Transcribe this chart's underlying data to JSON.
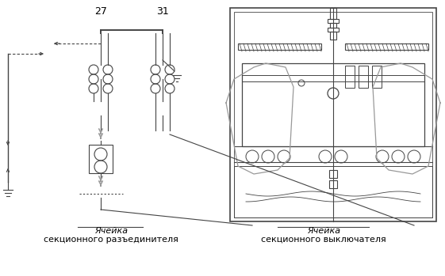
{
  "label_27": "27",
  "label_31": "31",
  "label_cell1_line1": "Ячейка",
  "label_cell1_line2": "секционного разъединителя",
  "label_cell2_line1": "Ячейка",
  "label_cell2_line2": "секционного выключателя",
  "line_color": "#444444",
  "bg_color": "#ffffff",
  "font_color": "#000000",
  "gray_color": "#999999"
}
